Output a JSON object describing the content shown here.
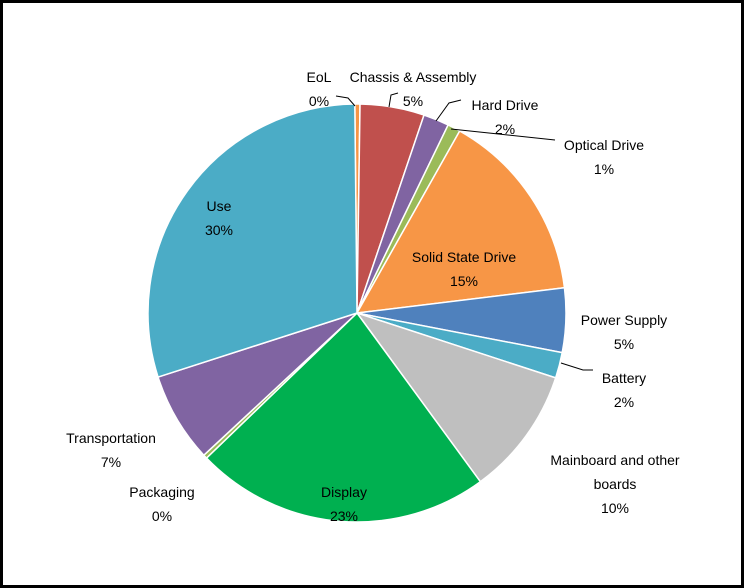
{
  "chart_data": {
    "type": "pie",
    "categories": [
      "EoL",
      "Chassis & Assembly",
      "Hard Drive",
      "Optical Drive",
      "Solid State Drive",
      "Power Supply",
      "Battery",
      "Mainboard and other boards",
      "Display",
      "Packaging",
      "Transportation",
      "Use"
    ],
    "values": [
      0.4,
      5,
      2,
      1,
      15,
      5,
      2,
      10,
      23,
      0.3,
      7,
      30
    ],
    "value_labels": [
      "0%",
      "5%",
      "2%",
      "1%",
      "15%",
      "5%",
      "2%",
      "10%",
      "23%",
      "0%",
      "7%",
      "30%"
    ],
    "colors": [
      "#f79646",
      "#c0504d",
      "#8064a2",
      "#9bbb59",
      "#f79646",
      "#4f81bd",
      "#4bacc6",
      "#bfbfbf",
      "#00b050",
      "#9bbb59",
      "#8064a2",
      "#4bacc6"
    ]
  }
}
